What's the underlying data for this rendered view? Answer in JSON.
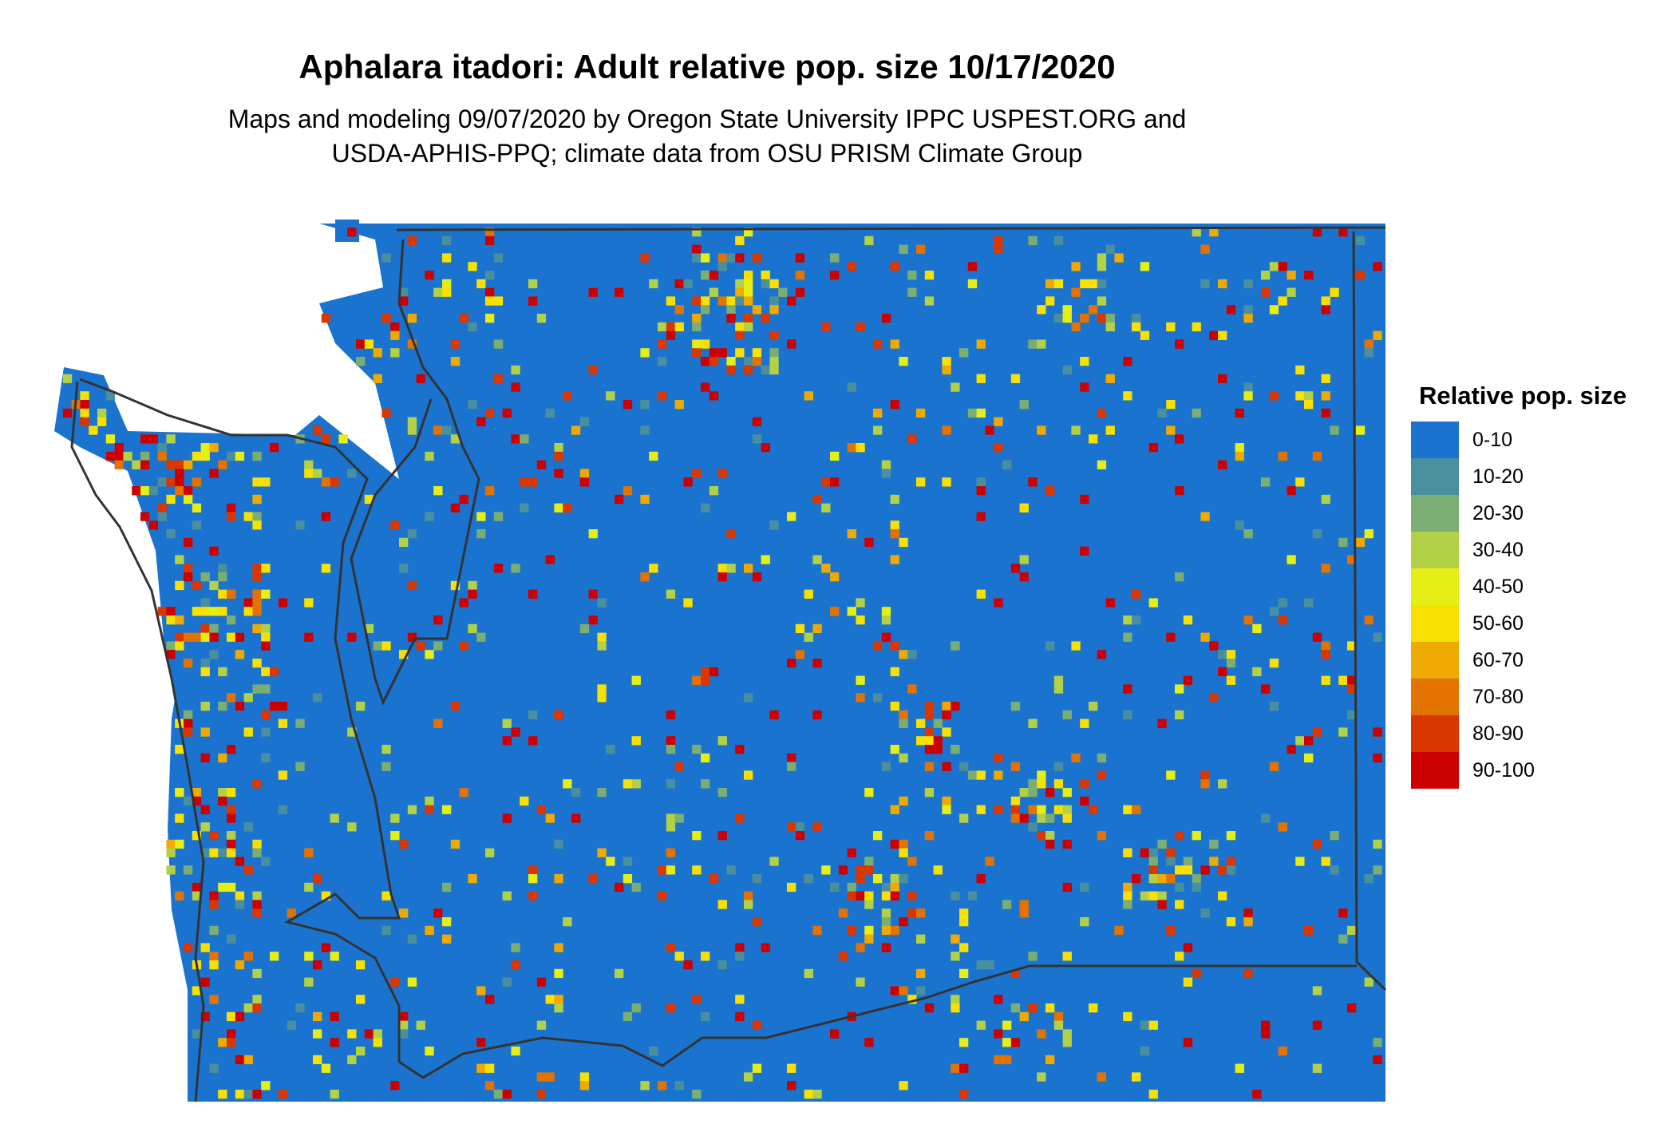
{
  "title": "Aphalara itadori: Adult relative pop. size 10/17/2020",
  "subtitle_lines": [
    "Maps and modeling 09/07/2020 by Oregon State University IPPC USPEST.ORG and",
    "USDA-APHIS-PPQ; climate data from OSU PRISM Climate Group"
  ],
  "legend": {
    "title": "Relative pop. size",
    "items": [
      {
        "label": "0-10",
        "color": "#1a74cf"
      },
      {
        "label": "10-20",
        "color": "#4a8f9d"
      },
      {
        "label": "20-30",
        "color": "#7bae73"
      },
      {
        "label": "30-40",
        "color": "#b2d147"
      },
      {
        "label": "40-50",
        "color": "#e5ef16"
      },
      {
        "label": "50-60",
        "color": "#f8e100"
      },
      {
        "label": "60-70",
        "color": "#eeaa00"
      },
      {
        "label": "70-80",
        "color": "#e37300"
      },
      {
        "label": "80-90",
        "color": "#da3600"
      },
      {
        "label": "90-100",
        "color": "#cc0000"
      }
    ]
  },
  "map": {
    "region": "Washington State",
    "background_class": "0-10",
    "outline_color": "#333333"
  }
}
